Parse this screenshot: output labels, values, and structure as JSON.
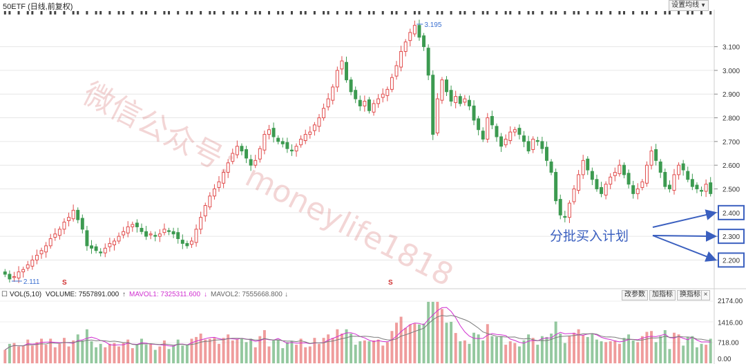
{
  "header": {
    "title": "50ETF (日线,前复权)",
    "settings_label": "设置均线"
  },
  "chart_data": [
    {
      "type": "candlestick",
      "title": "50ETF (日线,前复权)",
      "ylim": [
        2.111,
        3.195
      ],
      "yticks": [
        "3.100",
        "3.000",
        "2.900",
        "2.800",
        "2.700",
        "2.600",
        "2.500",
        "2.400",
        "2.300",
        "2.200"
      ],
      "series": [
        {
          "close": [
            2.14,
            2.12,
            2.13,
            2.15,
            2.16,
            2.18,
            2.2,
            2.22,
            2.24,
            2.26,
            2.29,
            2.31,
            2.33,
            2.36,
            2.38,
            2.41,
            2.37,
            2.33,
            2.26,
            2.25,
            2.24,
            2.23,
            2.25,
            2.27,
            2.28,
            2.3,
            2.32,
            2.34,
            2.35,
            2.34,
            2.32,
            2.3,
            2.31,
            2.3,
            2.31,
            2.33,
            2.32,
            2.31,
            2.29,
            2.27,
            2.26,
            2.28,
            2.33,
            2.38,
            2.43,
            2.47,
            2.5,
            2.53,
            2.57,
            2.61,
            2.65,
            2.68,
            2.66,
            2.63,
            2.6,
            2.62,
            2.67,
            2.73,
            2.75,
            2.72,
            2.7,
            2.69,
            2.67,
            2.66,
            2.68,
            2.71,
            2.73,
            2.74,
            2.77,
            2.8,
            2.84,
            2.88,
            2.93,
            3.0,
            3.04,
            2.96,
            2.91,
            2.88,
            2.85,
            2.87,
            2.83,
            2.86,
            2.88,
            2.9,
            2.92,
            2.97,
            3.02,
            3.08,
            3.12,
            3.16,
            3.19,
            3.14,
            3.1,
            2.98,
            2.73,
            2.88,
            2.96,
            2.91,
            2.87,
            2.89,
            2.86,
            2.88,
            2.85,
            2.79,
            2.75,
            2.71,
            2.8,
            2.77,
            2.72,
            2.68,
            2.71,
            2.74,
            2.75,
            2.73,
            2.7,
            2.66,
            2.71,
            2.7,
            2.67,
            2.62,
            2.57,
            2.45,
            2.39,
            2.38,
            2.44,
            2.5,
            2.56,
            2.62,
            2.58,
            2.54,
            2.5,
            2.48,
            2.52,
            2.55,
            2.57,
            2.6,
            2.56,
            2.52,
            2.48,
            2.5,
            2.53,
            2.6,
            2.66,
            2.62,
            2.57,
            2.51,
            2.5,
            2.56,
            2.6,
            2.58,
            2.54,
            2.51,
            2.5,
            2.49,
            2.52,
            2.48
          ]
        }
      ],
      "annotations": [
        "2.111",
        "3.195"
      ],
      "highlighted_levels": [
        "2.400",
        "2.300",
        "2.200"
      ]
    },
    {
      "type": "bar",
      "title": "VOL(5,10)",
      "ylim": [
        0,
        2174
      ],
      "yticks": [
        "2174.00",
        "1416.00",
        "718.00",
        "0.00"
      ],
      "series": [
        {
          "name": "VOLUME",
          "current": "7557891.000"
        },
        {
          "name": "MAVOL1",
          "current": "7325311.600"
        },
        {
          "name": "MAVOL2",
          "current": "7555668.800"
        }
      ]
    }
  ],
  "volume_panel": {
    "indicator": "VOL(5,10)",
    "volume_text": "VOLUME: 7557891.000",
    "mavol1_text": "MAVOL1: 7325311.600",
    "mavol2_text": "MAVOL2: 7555668.800",
    "buttons": [
      "改参数",
      "加指标",
      "换指标"
    ],
    "close_glyph": "×"
  },
  "annotation_text": "分批买入计划",
  "watermark_text": "微信公众号：moneylife1818",
  "colors": {
    "up": "#e14b4b",
    "down": "#3c9a50",
    "accent": "#3a5fbf",
    "mavol1": "#d02fd0",
    "mavol2": "#7a7a7a"
  }
}
